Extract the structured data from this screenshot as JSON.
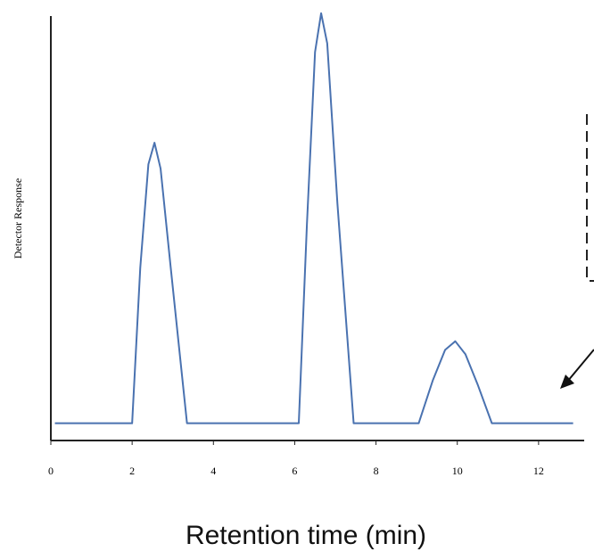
{
  "chart_data": {
    "type": "line",
    "x_label": "Retention time (min)",
    "y_label": "Detector Response",
    "x": [
      0.1,
      2.0,
      2.2,
      2.4,
      2.55,
      2.7,
      2.95,
      3.35,
      6.1,
      6.3,
      6.5,
      6.65,
      6.8,
      7.05,
      7.45,
      9.05,
      9.4,
      9.7,
      9.95,
      10.2,
      10.5,
      10.85,
      12.85
    ],
    "series": [
      {
        "color": "#4a72b0",
        "values": [
          4,
          4,
          40,
          64,
          69,
          63,
          40,
          4,
          4,
          50,
          90,
          99,
          92,
          55,
          4,
          4,
          14,
          21,
          23,
          20,
          13,
          4,
          4
        ]
      }
    ],
    "xlim": [
      0,
      13.1
    ],
    "xticks": [
      0,
      2,
      4,
      6,
      8,
      10,
      12
    ],
    "ylim": [
      0,
      100
    ]
  }
}
